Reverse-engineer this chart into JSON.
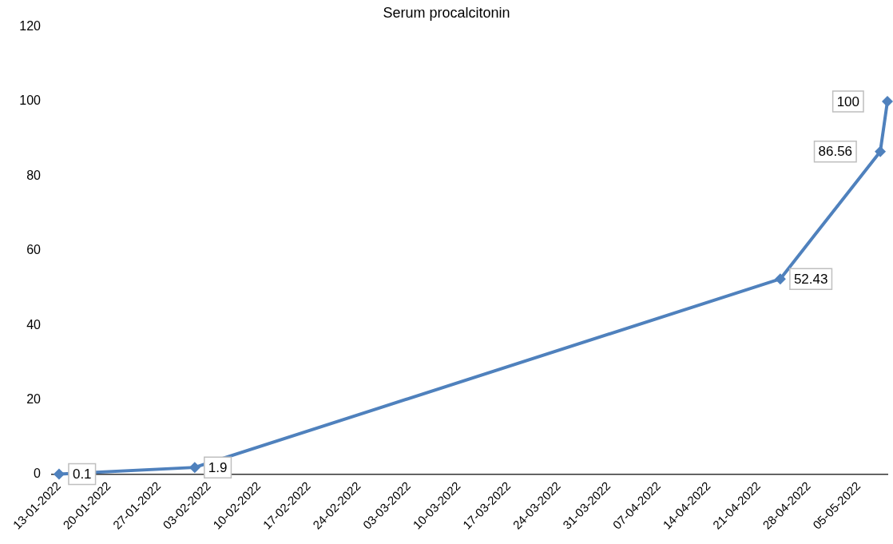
{
  "chart_data": {
    "type": "line",
    "title": "Serum procalcitonin",
    "x": [
      "2022-01-13",
      "2022-02-01",
      "2022-04-24",
      "2022-05-08",
      "2022-05-09"
    ],
    "series": [
      {
        "color": "#4f81bd",
        "values": [
          0.1,
          1.9,
          52.43,
          86.56,
          100
        ]
      }
    ],
    "xlim": [
      "2022-01-12",
      "2022-05-09"
    ],
    "xticks": [
      {
        "value": "2022-01-13",
        "label": "13-01-2022"
      },
      {
        "value": "2022-01-20",
        "label": "20-01-2022"
      },
      {
        "value": "2022-01-27",
        "label": "27-01-2022"
      },
      {
        "value": "2022-02-03",
        "label": "03-02-2022"
      },
      {
        "value": "2022-02-10",
        "label": "10-02-2022"
      },
      {
        "value": "2022-02-17",
        "label": "17-02-2022"
      },
      {
        "value": "2022-02-24",
        "label": "24-02-2022"
      },
      {
        "value": "2022-03-03",
        "label": "03-03-2022"
      },
      {
        "value": "2022-03-10",
        "label": "10-03-2022"
      },
      {
        "value": "2022-03-17",
        "label": "17-03-2022"
      },
      {
        "value": "2022-03-24",
        "label": "24-03-2022"
      },
      {
        "value": "2022-03-31",
        "label": "31-03-2022"
      },
      {
        "value": "2022-04-07",
        "label": "07-04-2022"
      },
      {
        "value": "2022-04-14",
        "label": "14-04-2022"
      },
      {
        "value": "2022-04-21",
        "label": "21-04-2022"
      },
      {
        "value": "2022-04-28",
        "label": "28-04-2022"
      },
      {
        "value": "2022-05-05",
        "label": "05-05-2022"
      }
    ],
    "ylim": [
      0,
      120
    ],
    "yticks": [
      0,
      20,
      40,
      60,
      80,
      100,
      120
    ],
    "grid": false,
    "legend": false,
    "marker": "diamond",
    "line_style": "solid",
    "data_labels": true
  }
}
